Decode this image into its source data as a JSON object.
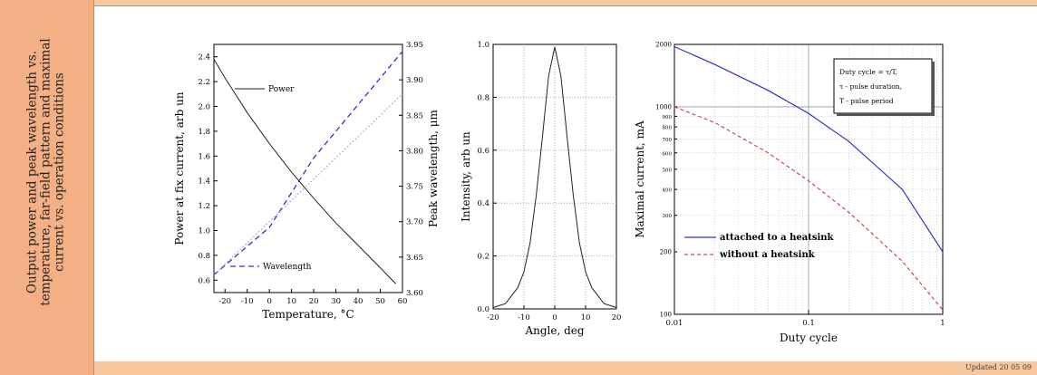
{
  "sidebar": {
    "title": "Output power and peak wavelength vs.\ntemperature, far-field pattern and maximal\ncurrent vs. operation conditions"
  },
  "footer": {
    "updated": "Updated 20 05 09"
  },
  "colors": {
    "accent": "#f4b085",
    "background": "#f7c79d",
    "series_blue": "#2b34c8",
    "series_red": "#d04848"
  },
  "chart_data": [
    {
      "type": "line",
      "title": "",
      "xlabel": "Temperature, °C",
      "ylabel": "Power at fix current, arb un",
      "y2label": "Peak wavelength, μm",
      "xlim": [
        -25,
        60
      ],
      "ylim": [
        0.5,
        2.5
      ],
      "y2lim": [
        3.6,
        3.95
      ],
      "xticks": [
        "-20",
        "-10",
        "0",
        "10",
        "20",
        "30",
        "40",
        "50",
        "60"
      ],
      "yticks": [
        "0.6",
        "0.8",
        "1.0",
        "1.2",
        "1.4",
        "1.6",
        "1.8",
        "2.0",
        "2.2",
        "2.4"
      ],
      "y2ticks": [
        "3.60",
        "3.65",
        "3.70",
        "3.75",
        "3.80",
        "3.85",
        "3.90",
        "3.95"
      ],
      "legend": [
        "Power",
        "Wavelength"
      ],
      "series": [
        {
          "name": "Power",
          "axis": "left",
          "style": "solid",
          "x": [
            -25,
            -20,
            -10,
            0,
            10,
            20,
            30,
            40,
            50,
            57
          ],
          "y": [
            2.38,
            2.23,
            1.95,
            1.7,
            1.47,
            1.26,
            1.06,
            0.88,
            0.7,
            0.57
          ]
        },
        {
          "name": "Wavelength",
          "axis": "right",
          "style": "dashed",
          "x": [
            -25,
            0,
            20,
            40,
            60
          ],
          "y": [
            3.625,
            3.692,
            3.79,
            3.865,
            3.94
          ]
        },
        {
          "axis": "right",
          "style": "dotted",
          "x": [
            -25,
            0,
            20,
            40,
            60
          ],
          "y": [
            3.625,
            3.7,
            3.76,
            3.82,
            3.88
          ]
        }
      ]
    },
    {
      "type": "line",
      "title": "",
      "xlabel": "Angle, deg",
      "ylabel": "Intensity, arb un",
      "xlim": [
        -20,
        20
      ],
      "ylim": [
        0,
        1.0
      ],
      "xticks": [
        "-20",
        "-10",
        "0",
        "10",
        "20"
      ],
      "yticks": [
        "0.0",
        "0.2",
        "0.4",
        "0.6",
        "0.8",
        "1.0"
      ],
      "series": [
        {
          "x": [
            -20,
            -16,
            -12,
            -10,
            -8,
            -6,
            -4,
            -2,
            0,
            2,
            4,
            6,
            8,
            10,
            12,
            16,
            20
          ],
          "y": [
            0.005,
            0.02,
            0.08,
            0.14,
            0.25,
            0.43,
            0.65,
            0.88,
            0.99,
            0.88,
            0.65,
            0.43,
            0.25,
            0.14,
            0.08,
            0.02,
            0.005
          ]
        }
      ]
    },
    {
      "type": "line",
      "title": "",
      "xlabel": "Duty cycle",
      "ylabel": "Maximal current, mA",
      "xscale": "log",
      "yscale": "log",
      "xlim": [
        0.01,
        1
      ],
      "ylim": [
        100,
        2000
      ],
      "xticks": [
        "0.01",
        "0.1",
        "1"
      ],
      "yticks": [
        "100",
        "200",
        "300",
        "400",
        "500",
        "600",
        "700",
        "800",
        "900",
        "1000",
        "2000"
      ],
      "annotation": [
        "Duty cycle = τ/T,",
        "τ - pulse duration,",
        "T - pulse period"
      ],
      "legend": [
        "attached to a heatsink",
        "without a heatsink"
      ],
      "series": [
        {
          "name": "attached to a heatsink",
          "style": "solid",
          "x": [
            0.01,
            0.02,
            0.05,
            0.1,
            0.2,
            0.5,
            1
          ],
          "y": [
            1950,
            1600,
            1200,
            930,
            680,
            400,
            200
          ]
        },
        {
          "name": "without a heatsink",
          "style": "dashed",
          "x": [
            0.01,
            0.02,
            0.05,
            0.1,
            0.2,
            0.5,
            1
          ],
          "y": [
            1000,
            840,
            600,
            440,
            310,
            180,
            105
          ]
        }
      ]
    }
  ]
}
